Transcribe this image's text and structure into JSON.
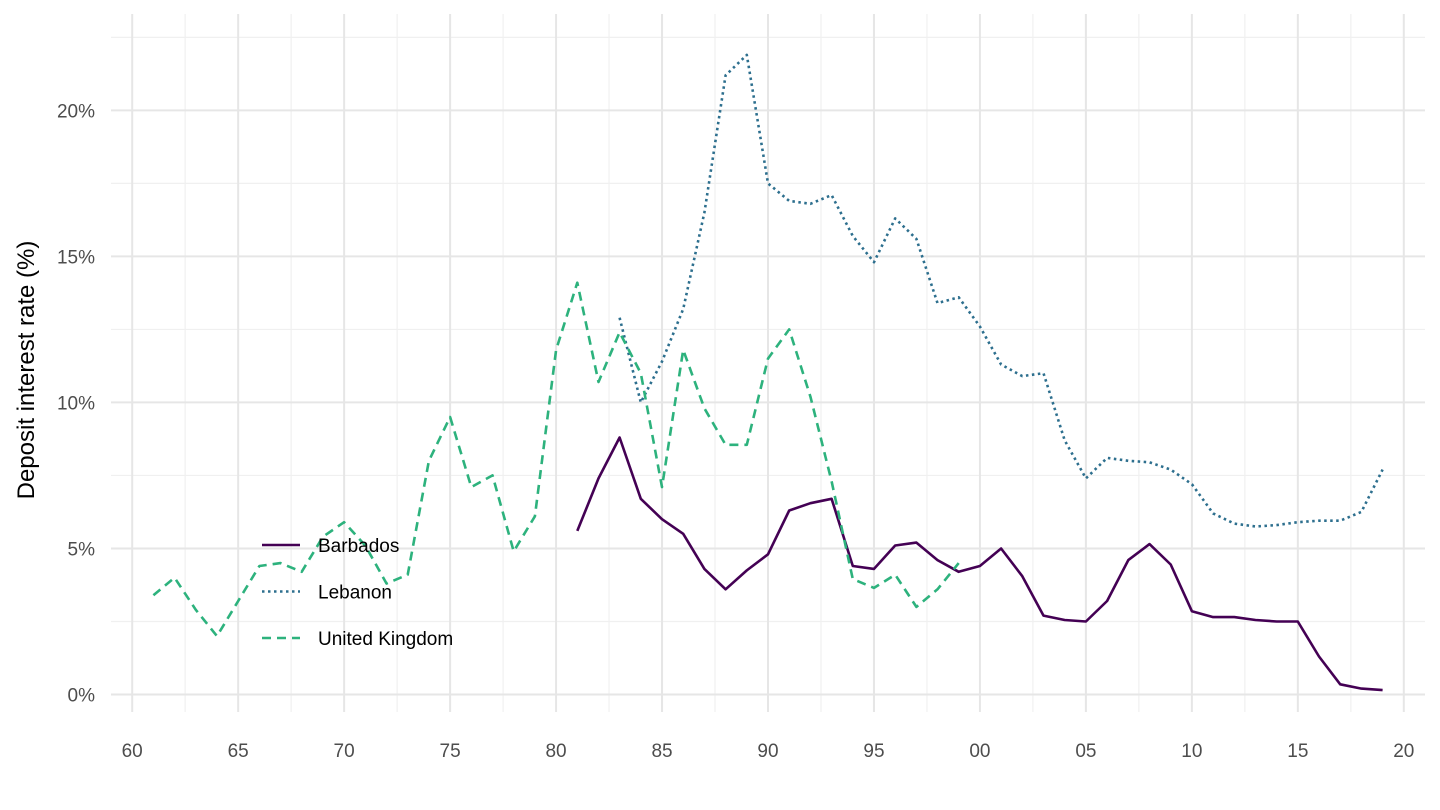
{
  "chart_data": {
    "type": "line",
    "title": "",
    "xlabel": "",
    "ylabel": "Deposit interest rate (%)",
    "xlim": [
      1959,
      2021
    ],
    "ylim": [
      -0.6,
      23.3
    ],
    "grid": true,
    "legend_position": "bottom-left",
    "x_ticks": [
      {
        "value": 1960,
        "label": "60"
      },
      {
        "value": 1965,
        "label": "65"
      },
      {
        "value": 1970,
        "label": "70"
      },
      {
        "value": 1975,
        "label": "75"
      },
      {
        "value": 1980,
        "label": "80"
      },
      {
        "value": 1985,
        "label": "85"
      },
      {
        "value": 1990,
        "label": "90"
      },
      {
        "value": 1995,
        "label": "95"
      },
      {
        "value": 2000,
        "label": "00"
      },
      {
        "value": 2005,
        "label": "05"
      },
      {
        "value": 2010,
        "label": "10"
      },
      {
        "value": 2015,
        "label": "15"
      },
      {
        "value": 2020,
        "label": "20"
      }
    ],
    "y_ticks": [
      {
        "value": 0,
        "label": "0%"
      },
      {
        "value": 5,
        "label": "5%"
      },
      {
        "value": 10,
        "label": "10%"
      },
      {
        "value": 15,
        "label": "15%"
      },
      {
        "value": 20,
        "label": "20%"
      }
    ],
    "series": [
      {
        "name": "Barbados",
        "color": "#440154",
        "dash": "solid",
        "x": [
          1981,
          1982,
          1983,
          1984,
          1985,
          1986,
          1987,
          1988,
          1989,
          1990,
          1991,
          1992,
          1993,
          1994,
          1995,
          1996,
          1997,
          1998,
          1999,
          2000,
          2001,
          2002,
          2003,
          2004,
          2005,
          2006,
          2007,
          2008,
          2009,
          2010,
          2011,
          2012,
          2013,
          2014,
          2015,
          2016,
          2017,
          2018,
          2019
        ],
        "y": [
          5.6,
          7.4,
          8.8,
          6.7,
          6.0,
          5.5,
          4.3,
          3.6,
          4.25,
          4.8,
          6.3,
          6.55,
          6.7,
          4.4,
          4.3,
          5.1,
          5.2,
          4.6,
          4.2,
          4.4,
          5.0,
          4.05,
          2.7,
          2.55,
          2.5,
          3.2,
          4.6,
          5.15,
          4.45,
          2.85,
          2.65,
          2.65,
          2.55,
          2.5,
          2.5,
          1.3,
          0.35,
          0.2,
          0.15
        ]
      },
      {
        "name": "Lebanon",
        "color": "#2d6f8e",
        "dash": "dotted",
        "x": [
          1983,
          1984,
          1985,
          1986,
          1987,
          1988,
          1989,
          1990,
          1991,
          1992,
          1993,
          1994,
          1995,
          1996,
          1997,
          1998,
          1999,
          2000,
          2001,
          2002,
          2003,
          2004,
          2005,
          2006,
          2007,
          2008,
          2009,
          2010,
          2011,
          2012,
          2013,
          2014,
          2015,
          2016,
          2017,
          2018,
          2019
        ],
        "y": [
          12.9,
          10.0,
          11.4,
          13.2,
          16.5,
          21.2,
          21.9,
          17.5,
          16.9,
          16.8,
          17.1,
          15.7,
          14.8,
          16.3,
          15.6,
          13.4,
          13.6,
          12.6,
          11.3,
          10.9,
          11.0,
          8.7,
          7.4,
          8.1,
          8.0,
          7.95,
          7.7,
          7.2,
          6.2,
          5.85,
          5.75,
          5.8,
          5.9,
          5.95,
          5.95,
          6.25,
          7.7
        ]
      },
      {
        "name": "United Kingdom",
        "color": "#2db27d",
        "dash": "dashed",
        "x": [
          1961,
          1962,
          1963,
          1964,
          1965,
          1966,
          1967,
          1968,
          1969,
          1970,
          1971,
          1972,
          1973,
          1974,
          1975,
          1976,
          1977,
          1978,
          1979,
          1980,
          1981,
          1982,
          1983,
          1984,
          1985,
          1986,
          1987,
          1988,
          1989,
          1990,
          1991,
          1992,
          1993,
          1994,
          1995,
          1996,
          1997,
          1998,
          1999
        ],
        "y": [
          3.4,
          4.0,
          2.9,
          2.0,
          3.2,
          4.4,
          4.5,
          4.2,
          5.4,
          5.9,
          5.1,
          3.8,
          4.1,
          8.0,
          9.5,
          7.1,
          7.5,
          4.9,
          6.1,
          11.8,
          14.1,
          10.7,
          12.4,
          11.0,
          7.1,
          11.8,
          9.8,
          8.55,
          8.55,
          11.5,
          12.5,
          10.2,
          7.3,
          3.95,
          3.65,
          4.1,
          3.0,
          3.6,
          4.5
        ]
      }
    ]
  }
}
